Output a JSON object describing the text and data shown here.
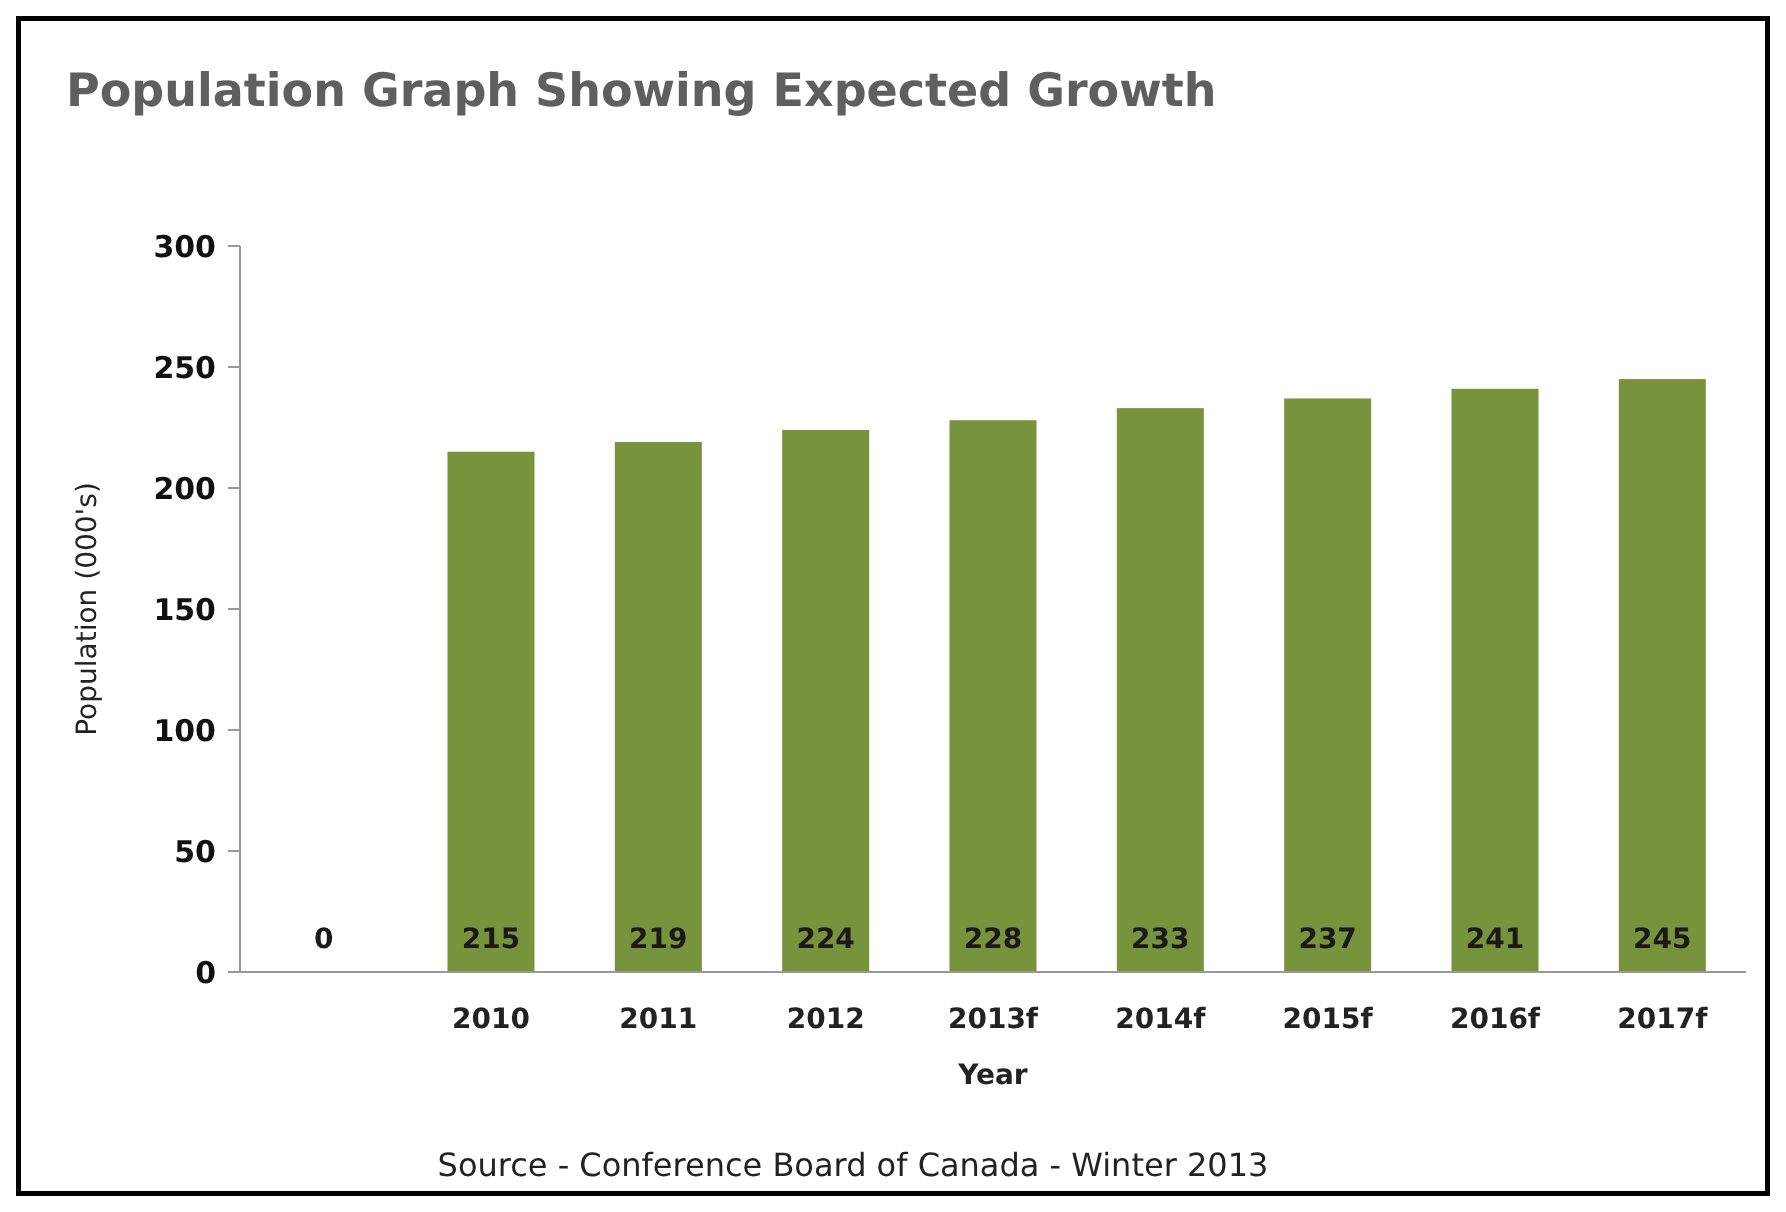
{
  "chart_data": {
    "type": "bar",
    "title": "Population Graph Showing Expected Growth",
    "xlabel": "Year",
    "ylabel": "Population  (000's)",
    "categories": [
      null,
      "2010",
      "2011",
      "2012",
      "2013f",
      "2014f",
      "2015f",
      "2016f",
      "2017f"
    ],
    "values": [
      0,
      215,
      219,
      224,
      228,
      233,
      237,
      241,
      245
    ],
    "color": "#77933c",
    "ylim": [
      0,
      300
    ],
    "yticks": [
      0,
      50,
      100,
      150,
      200,
      250,
      300
    ],
    "grid": false,
    "data_labels": true,
    "annotations": [
      "Source - Conference Board of Canada - Winter 2013"
    ]
  }
}
